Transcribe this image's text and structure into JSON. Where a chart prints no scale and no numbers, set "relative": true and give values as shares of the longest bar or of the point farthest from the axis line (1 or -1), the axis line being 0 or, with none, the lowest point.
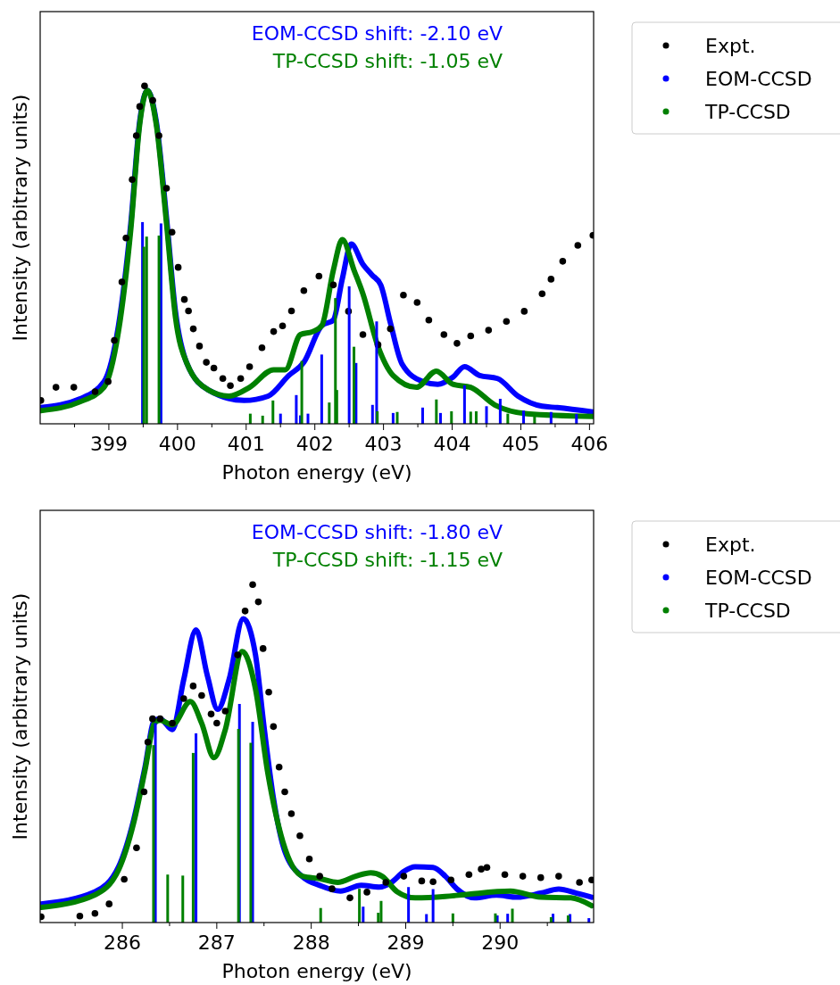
{
  "chart_data": [
    {
      "type": "line",
      "relative": true,
      "xlabel": "Photon energy (eV)",
      "ylabel": "Intensity (arbitrary units)",
      "legend": "top right",
      "annotations": [
        "EOM-CCSD shift: -2.10 eV",
        "TP-CCSD shift: -1.05 eV"
      ],
      "xlim": [
        398,
        406.06
      ],
      "xticks": [
        {
          "value": 398.5,
          "label": null
        },
        399,
        {
          "value": 399.5,
          "label": null
        },
        400,
        {
          "value": 400.5,
          "label": null
        },
        401,
        {
          "value": 401.5,
          "label": null
        },
        402,
        {
          "value": 402.5,
          "label": null
        },
        403,
        {
          "value": 403.5,
          "label": null
        },
        404,
        {
          "value": 404.5,
          "label": null
        },
        405,
        {
          "value": 405.5,
          "label": null
        },
        406
      ],
      "series": [
        {
          "name": "Expt.",
          "type": "scatter",
          "marker": "circle",
          "color": "#000000",
          "x": [
            398.01,
            398.23,
            398.49,
            398.8,
            398.99,
            399.08,
            399.19,
            399.25,
            399.34,
            399.4,
            399.45,
            399.52,
            399.64,
            399.73,
            399.84,
            399.92,
            400.01,
            400.1,
            400.16,
            400.23,
            400.32,
            400.42,
            400.53,
            400.66,
            400.77,
            400.92,
            401.05,
            401.23,
            401.4,
            401.53,
            401.66,
            401.84,
            402.06,
            402.27,
            402.49,
            402.7,
            402.92,
            403.1,
            403.29,
            403.49,
            403.66,
            403.88,
            404.07,
            404.27,
            404.53,
            404.79,
            405.05,
            405.31,
            405.44,
            405.61,
            405.83,
            406.05
          ],
          "values": [
            0.069,
            0.108,
            0.108,
            0.095,
            0.125,
            0.247,
            0.42,
            0.55,
            0.723,
            0.853,
            0.939,
            1,
            0.957,
            0.853,
            0.697,
            0.567,
            0.463,
            0.368,
            0.334,
            0.281,
            0.23,
            0.182,
            0.165,
            0.134,
            0.113,
            0.134,
            0.169,
            0.225,
            0.273,
            0.29,
            0.334,
            0.394,
            0.437,
            0.411,
            0.333,
            0.264,
            0.234,
            0.281,
            0.381,
            0.359,
            0.307,
            0.264,
            0.238,
            0.26,
            0.277,
            0.303,
            0.333,
            0.385,
            0.428,
            0.481,
            0.528,
            0.558
          ]
        },
        {
          "name": "EOM-CCSD",
          "color": "#0000ff",
          "x": [
            398.01,
            398.58,
            398.93,
            399.14,
            399.32,
            399.45,
            399.56,
            399.69,
            399.84,
            399.97,
            400.14,
            400.45,
            400.97,
            401.32,
            401.62,
            401.84,
            402.1,
            402.27,
            402.4,
            402.53,
            402.7,
            402.83,
            402.96,
            403.1,
            403.27,
            403.57,
            403.79,
            404.01,
            404.18,
            404.4,
            404.66,
            404.96,
            405.31,
            405.53,
            406.05
          ],
          "values": [
            0.048,
            0.074,
            0.125,
            0.29,
            0.593,
            0.896,
            0.987,
            0.896,
            0.61,
            0.333,
            0.177,
            0.1,
            0.069,
            0.082,
            0.143,
            0.182,
            0.29,
            0.307,
            0.429,
            0.532,
            0.472,
            0.441,
            0.411,
            0.299,
            0.177,
            0.125,
            0.117,
            0.138,
            0.169,
            0.143,
            0.134,
            0.082,
            0.052,
            0.048,
            0.035
          ]
        },
        {
          "name": "TP-CCSD",
          "color": "#008000",
          "x": [
            398.01,
            398.58,
            398.93,
            399.14,
            399.32,
            399.45,
            399.56,
            399.69,
            399.84,
            399.97,
            400.14,
            400.45,
            400.75,
            401.05,
            401.4,
            401.57,
            401.79,
            401.97,
            402.1,
            402.27,
            402.4,
            402.57,
            402.7,
            402.92,
            403.14,
            403.48,
            403.77,
            404.01,
            404.27,
            404.62,
            405.09,
            406.05
          ],
          "values": [
            0.039,
            0.065,
            0.108,
            0.273,
            0.576,
            0.887,
            0.987,
            0.887,
            0.593,
            0.316,
            0.177,
            0.1,
            0.082,
            0.108,
            0.16,
            0.16,
            0.264,
            0.273,
            0.29,
            0.455,
            0.545,
            0.455,
            0.385,
            0.229,
            0.143,
            0.108,
            0.156,
            0.117,
            0.108,
            0.056,
            0.03,
            0.022
          ]
        },
        {
          "type": "bar",
          "color": "#0000ff",
          "x": [
            399.49,
            399.76,
            401.5,
            401.73,
            401.79,
            401.9,
            402.1,
            402.5,
            402.6,
            402.84,
            402.9,
            403.14,
            403.57,
            403.83,
            404.18,
            404.5,
            404.7,
            405.04,
            405.44,
            405.81
          ],
          "values": [
            0.597,
            0.593,
            0.03,
            0.085,
            0.025,
            0.03,
            0.205,
            0.407,
            0.18,
            0.056,
            0.303,
            0.032,
            0.048,
            0.032,
            0.114,
            0.052,
            0.074,
            0.039,
            0.035,
            0.029
          ]
        },
        {
          "type": "bar",
          "color": "#008000",
          "x": [
            399.51,
            399.55,
            399.73,
            401.06,
            401.24,
            401.39,
            401.81,
            402.21,
            402.3,
            402.32,
            402.57,
            402.91,
            403.2,
            403.77,
            403.99,
            404.27,
            404.35,
            404.81,
            405.2
          ],
          "values": [
            0.524,
            0.554,
            0.557,
            0.03,
            0.024,
            0.069,
            0.186,
            0.063,
            0.372,
            0.1,
            0.228,
            0.037,
            0.035,
            0.072,
            0.037,
            0.036,
            0.037,
            0.03,
            0.028
          ]
        }
      ]
    },
    {
      "type": "line",
      "relative": true,
      "xlabel": "Photon energy (eV)",
      "ylabel": "Intensity (arbitrary units)",
      "legend": "top right",
      "annotations": [
        "EOM-CCSD shift: -1.80 eV",
        "TP-CCSD shift: -1.15 eV"
      ],
      "xlim": [
        285.13,
        290.99
      ],
      "xticks": [
        {
          "value": 285.5,
          "label": null
        },
        286,
        {
          "value": 286.5,
          "label": null
        },
        287,
        {
          "value": 287.5,
          "label": null
        },
        288,
        {
          "value": 288.5,
          "label": null
        },
        289,
        {
          "value": 289.5,
          "label": null
        },
        290,
        {
          "value": 290.5,
          "label": null
        }
      ],
      "series": [
        {
          "name": "Expt.",
          "type": "scatter",
          "marker": "circle",
          "color": "#000000",
          "x": [
            285.14,
            285.55,
            285.71,
            285.86,
            286.02,
            286.15,
            286.23,
            286.27,
            286.32,
            286.4,
            286.53,
            286.65,
            286.75,
            286.84,
            286.94,
            287.0,
            287.09,
            287.22,
            287.3,
            287.38,
            287.44,
            287.49,
            287.55,
            287.6,
            287.66,
            287.72,
            287.79,
            287.88,
            287.98,
            288.09,
            288.22,
            288.41,
            288.59,
            288.79,
            288.98,
            289.17,
            289.29,
            289.48,
            289.67,
            289.8,
            289.86,
            290.05,
            290.24,
            290.43,
            290.62,
            290.84,
            290.97
          ],
          "values": [
            0.017,
            0.019,
            0.027,
            0.055,
            0.128,
            0.221,
            0.387,
            0.534,
            0.603,
            0.603,
            0.59,
            0.663,
            0.7,
            0.672,
            0.617,
            0.59,
            0.626,
            0.792,
            0.922,
            1,
            0.949,
            0.811,
            0.682,
            0.58,
            0.46,
            0.387,
            0.322,
            0.257,
            0.188,
            0.137,
            0.1,
            0.073,
            0.09,
            0.119,
            0.137,
            0.123,
            0.121,
            0.126,
            0.142,
            0.158,
            0.163,
            0.142,
            0.137,
            0.133,
            0.137,
            0.119,
            0.126
          ]
        },
        {
          "name": "EOM-CCSD",
          "color": "#0000ff",
          "x": [
            285.14,
            285.71,
            285.96,
            286.12,
            286.24,
            286.34,
            286.4,
            286.53,
            286.65,
            286.78,
            286.9,
            287.01,
            287.13,
            287.28,
            287.41,
            287.5,
            287.6,
            287.72,
            287.91,
            288.09,
            288.31,
            288.53,
            288.72,
            288.85,
            288.98,
            289.1,
            289.29,
            289.42,
            289.54,
            289.73,
            289.96,
            290.18,
            290.43,
            290.62,
            290.81,
            290.97
          ],
          "values": [
            0.055,
            0.091,
            0.165,
            0.304,
            0.46,
            0.599,
            0.603,
            0.571,
            0.719,
            0.866,
            0.731,
            0.631,
            0.719,
            0.899,
            0.792,
            0.58,
            0.368,
            0.211,
            0.135,
            0.11,
            0.093,
            0.11,
            0.105,
            0.119,
            0.151,
            0.165,
            0.163,
            0.137,
            0.1,
            0.073,
            0.081,
            0.075,
            0.087,
            0.099,
            0.087,
            0.075
          ]
        },
        {
          "name": "TP-CCSD",
          "color": "#008000",
          "x": [
            285.14,
            285.71,
            285.96,
            286.12,
            286.24,
            286.34,
            286.4,
            286.53,
            286.72,
            286.84,
            286.97,
            287.09,
            287.27,
            287.41,
            287.54,
            287.7,
            287.91,
            288.09,
            288.28,
            288.47,
            288.63,
            288.75,
            288.91,
            289.1,
            289.42,
            289.67,
            290.11,
            290.43,
            290.75,
            290.97
          ],
          "values": [
            0.045,
            0.082,
            0.156,
            0.295,
            0.451,
            0.59,
            0.599,
            0.585,
            0.654,
            0.59,
            0.488,
            0.571,
            0.802,
            0.691,
            0.443,
            0.239,
            0.137,
            0.13,
            0.119,
            0.137,
            0.147,
            0.137,
            0.091,
            0.073,
            0.077,
            0.084,
            0.093,
            0.075,
            0.073,
            0.05
          ]
        },
        {
          "type": "bar",
          "color": "#0000ff",
          "x": [
            286.35,
            286.78,
            287.24,
            287.38,
            288.55,
            289.03,
            289.22,
            289.29,
            289.97,
            290.08,
            290.56,
            290.74,
            290.94
          ],
          "values": [
            0.59,
            0.56,
            0.647,
            0.594,
            0.047,
            0.105,
            0.025,
            0.099,
            0.021,
            0.026,
            0.026,
            0.025,
            0.013
          ]
        },
        {
          "type": "bar",
          "color": "#008000",
          "x": [
            286.33,
            286.48,
            286.64,
            286.75,
            287.23,
            287.36,
            288.1,
            288.51,
            288.71,
            288.74,
            289.5,
            289.95,
            290.13,
            290.54,
            290.72
          ],
          "values": [
            0.525,
            0.142,
            0.139,
            0.502,
            0.573,
            0.532,
            0.043,
            0.1,
            0.029,
            0.064,
            0.027,
            0.027,
            0.041,
            0.016,
            0.021
          ]
        }
      ]
    }
  ]
}
